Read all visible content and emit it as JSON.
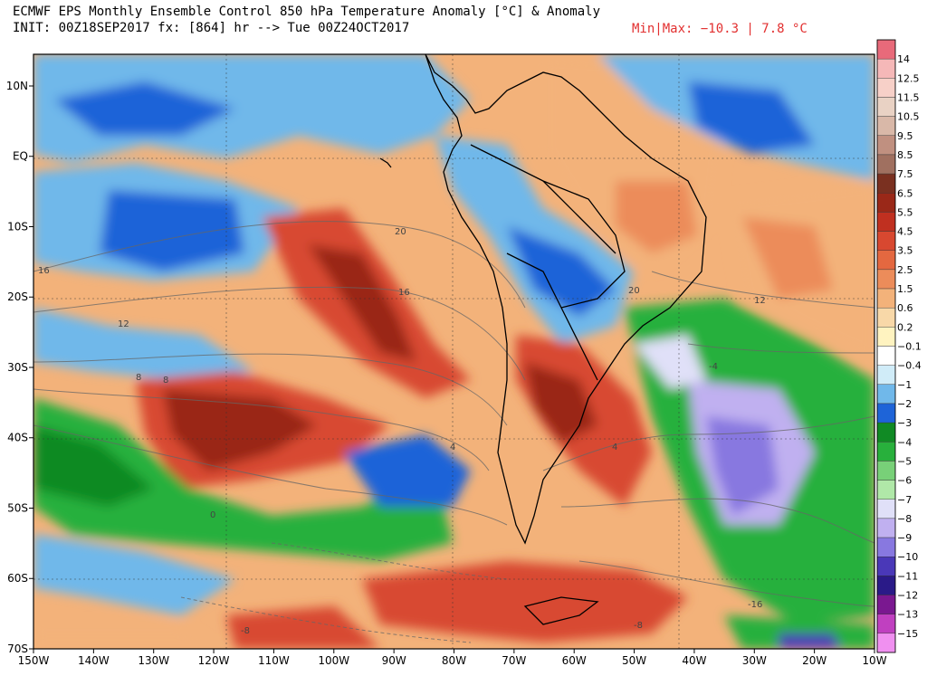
{
  "header": {
    "title": "ECMWF EPS Monthly Ensemble Control 850 hPa Temperature Anomaly [°C] & Anomaly",
    "init_line": "INIT: 00Z18SEP2017 fx: [864] hr --> Tue 00Z24OCT2017",
    "minmax": "Min|Max: −10.3 | 7.8 °C"
  },
  "axes": {
    "lon_labels": [
      "150W",
      "140W",
      "130W",
      "120W",
      "110W",
      "100W",
      "90W",
      "80W",
      "70W",
      "60W",
      "50W",
      "40W",
      "30W",
      "20W",
      "10W"
    ],
    "lat_labels": [
      "10N",
      "EQ",
      "10S",
      "20S",
      "30S",
      "40S",
      "50S",
      "60S",
      "70S"
    ],
    "lat_values": [
      10,
      0,
      -10,
      -20,
      -30,
      -40,
      -50,
      -60,
      -70
    ]
  },
  "colorbar": {
    "labels": [
      "14",
      "12.5",
      "11.5",
      "10.5",
      "9.5",
      "8.5",
      "7.5",
      "6.5",
      "5.5",
      "4.5",
      "3.5",
      "2.5",
      "1.5",
      "0.6",
      "0.2",
      "−0.1",
      "−0.4",
      "−1",
      "−2",
      "−3",
      "−4",
      "−5",
      "−6",
      "−7",
      "−8",
      "−9",
      "−10",
      "−11",
      "−12",
      "−13",
      "−15"
    ],
    "colors": [
      "#e86a7a",
      "#f5b8b8",
      "#f7d0c8",
      "#e9d2c4",
      "#d9b8a8",
      "#c09080",
      "#a07060",
      "#7a3020",
      "#9a2818",
      "#c03020",
      "#d84830",
      "#e46840",
      "#ec8c5a",
      "#f3b27a",
      "#f8d8a8",
      "#fff3c0",
      "#ffffff",
      "#d0ecf8",
      "#70b8ea",
      "#1e64d8",
      "#108a24",
      "#28b03c",
      "#78d078",
      "#b0e8a8",
      "#e0e0f8",
      "#c0b0f0",
      "#8878e0",
      "#4a38b8",
      "#2a1a88",
      "#7a1890",
      "#c040c0",
      "#f090f0"
    ]
  },
  "map": {
    "contour_labels": [
      "20",
      "16",
      "12",
      "8",
      "4",
      "0",
      "-4",
      "-8",
      "-16",
      "16",
      "20",
      "12",
      "8",
      "4",
      "-8"
    ]
  }
}
